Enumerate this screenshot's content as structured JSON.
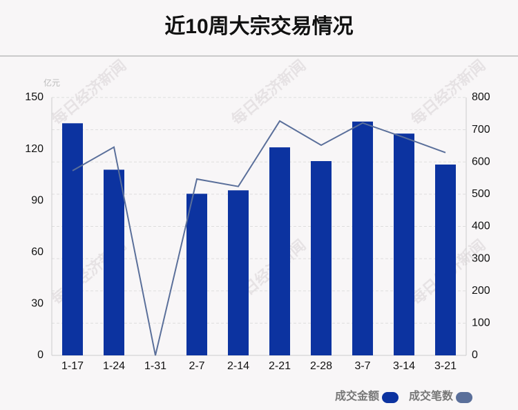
{
  "chart_data": {
    "type": "bar-line",
    "title": "近10周大宗交易情况",
    "y_unit": "亿元",
    "watermark": "每日经济新闻",
    "categories": [
      "1-17",
      "1-24",
      "1-31",
      "2-7",
      "2-14",
      "2-21",
      "2-28",
      "3-7",
      "3-14",
      "3-21"
    ],
    "series": [
      {
        "name": "成交金额",
        "type": "bar",
        "color": "#0c33a0",
        "values": [
          135,
          108,
          0,
          94,
          96,
          121,
          113,
          136,
          129,
          111
        ]
      },
      {
        "name": "成交笔数",
        "type": "line",
        "axis": "y2",
        "color": "#5a6f9a",
        "values": [
          573,
          646,
          0,
          547,
          524,
          727,
          652,
          721,
          676,
          629
        ]
      }
    ],
    "ylim": [
      0,
      150
    ],
    "yticks": [
      0,
      30,
      60,
      90,
      120,
      150
    ],
    "y2lim": [
      0,
      800
    ],
    "y2ticks": [
      0,
      100,
      200,
      300,
      400,
      500,
      600,
      700,
      800
    ],
    "grid": true,
    "legend": "bottom-right"
  }
}
